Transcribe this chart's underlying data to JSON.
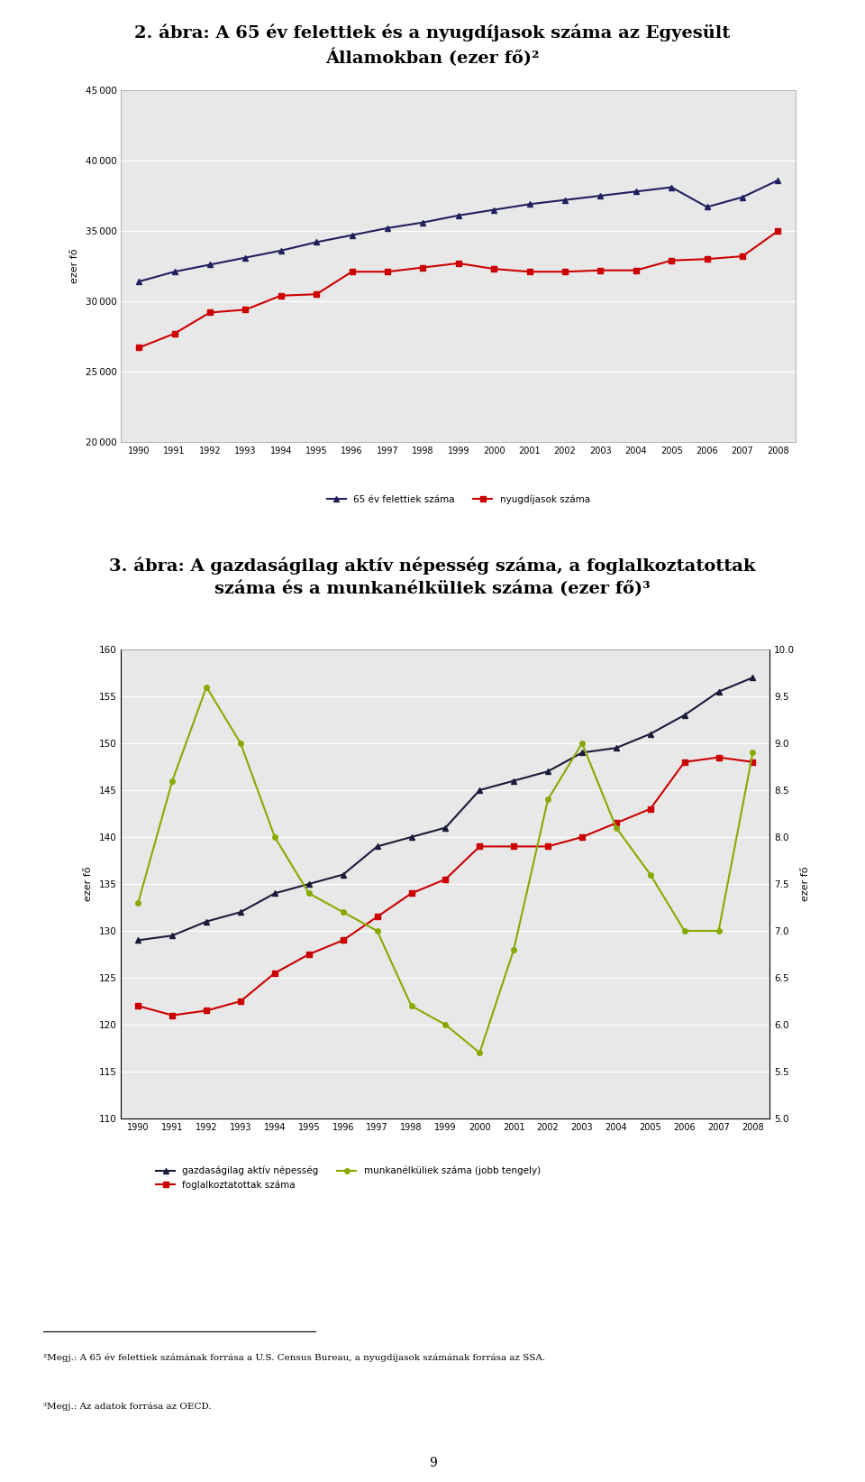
{
  "years": [
    1990,
    1991,
    1992,
    1993,
    1994,
    1995,
    1996,
    1997,
    1998,
    1999,
    2000,
    2001,
    2002,
    2003,
    2004,
    2005,
    2006,
    2007,
    2008
  ],
  "chart1": {
    "title": "2. ábra: A 65 év felettiek és a nyugdíjasok száma az Egyesült\nÁllamokban (ezer fő)²",
    "ylabel": "ezer fő",
    "ylim": [
      20000,
      45000
    ],
    "yticks": [
      20000,
      25000,
      30000,
      35000,
      40000,
      45000
    ],
    "line1_label": "65 év felettiek száma",
    "line1_color": "#1f1f5f",
    "line1_marker": "^",
    "line1_data": [
      31400,
      32100,
      32600,
      33100,
      33600,
      34200,
      34700,
      35200,
      35600,
      36100,
      36500,
      36900,
      37200,
      37500,
      37800,
      38100,
      36700,
      37400,
      38600
    ],
    "line2_label": "nyugdíjasok száma",
    "line2_color": "#cc0000",
    "line2_marker": "s",
    "line2_data": [
      26700,
      27700,
      29200,
      29400,
      30400,
      30500,
      32100,
      32100,
      32400,
      32700,
      32300,
      32100,
      32100,
      32200,
      32200,
      32900,
      33000,
      33200,
      35000
    ]
  },
  "chart2": {
    "title": "3. ábra: A gazdaságilag aktív népesség száma, a foglalkoztatottak\nszáma és a munkanélküliek száma (ezer fő)³",
    "ylabel_left": "ezer fő",
    "ylabel_right": "ezer fő",
    "ylim_left": [
      110,
      160
    ],
    "ylim_right": [
      5.0,
      10.0
    ],
    "yticks_left": [
      110,
      115,
      120,
      125,
      130,
      135,
      140,
      145,
      150,
      155,
      160
    ],
    "yticks_right": [
      5.0,
      5.5,
      6.0,
      6.5,
      7.0,
      7.5,
      8.0,
      8.5,
      9.0,
      9.5,
      10.0
    ],
    "line1_label": "gazdaságilag aktív népesség",
    "line1_color": "#1a1a3a",
    "line1_marker": "^",
    "line1_data": [
      129,
      129.5,
      131,
      132,
      134,
      135,
      136,
      139,
      140,
      141,
      145,
      146,
      147,
      149,
      149.5,
      151,
      153,
      155.5,
      157
    ],
    "line2_label": "foglalkoztatottak száma",
    "line2_color": "#cc0000",
    "line2_marker": "s",
    "line2_data": [
      122,
      121,
      121.5,
      122.5,
      125.5,
      127.5,
      129,
      131.5,
      134,
      135.5,
      139,
      139,
      139,
      140,
      141.5,
      143,
      148,
      148.5,
      148
    ],
    "line3_label": "munkanélküliek száma (jobb tengely)",
    "line3_color": "#88aa00",
    "line3_marker": "o",
    "line3_data": [
      7.3,
      8.6,
      9.6,
      9.0,
      8.0,
      7.4,
      7.2,
      7.0,
      6.2,
      6.0,
      5.7,
      6.8,
      8.4,
      9.0,
      8.1,
      7.6,
      7.0,
      7.0,
      8.9
    ]
  },
  "footnote1": "²Megj.: A 65 év felettiek számának forrása a U.S. Census Bureau, a nyugdíjasok számának forrása az SSA.",
  "footnote2": "³Megj.: Az adatok forrása az OECD.",
  "page_number": "9",
  "bg_color": "#e8e8e8"
}
